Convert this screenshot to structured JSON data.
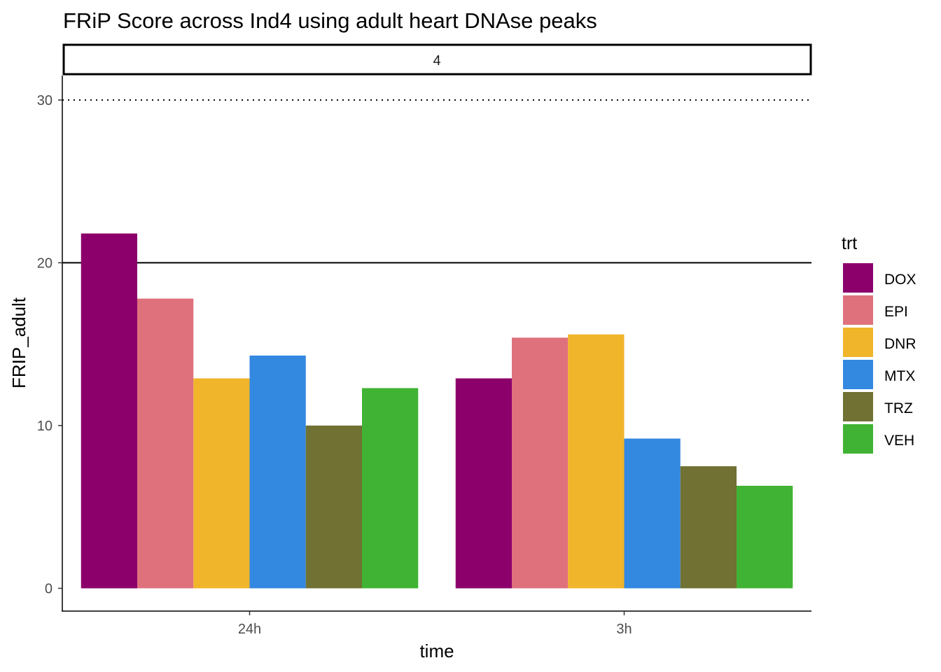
{
  "chart_data": {
    "type": "bar",
    "title": "FRiP Score  across Ind4 using adult heart DNAse peaks",
    "facet_label": "4",
    "xlabel": "time",
    "ylabel": "FRIP_adult",
    "categories": [
      "24h",
      "3h"
    ],
    "ylim": [
      -1.4,
      31.5
    ],
    "yticks": [
      0,
      10,
      20,
      30
    ],
    "reference_lines": [
      {
        "y": 20,
        "style": "solid"
      },
      {
        "y": 30,
        "style": "dotted"
      }
    ],
    "legend": {
      "title": "trt",
      "position": "right"
    },
    "series": [
      {
        "name": "DOX",
        "color": "#8B006B",
        "values": [
          21.8,
          12.9
        ]
      },
      {
        "name": "EPI",
        "color": "#DF717D",
        "values": [
          17.8,
          15.4
        ]
      },
      {
        "name": "DNR",
        "color": "#F0B52B",
        "values": [
          12.9,
          15.6
        ]
      },
      {
        "name": "MTX",
        "color": "#3388E0",
        "values": [
          14.3,
          9.2
        ]
      },
      {
        "name": "TRZ",
        "color": "#707133",
        "values": [
          10.0,
          7.5
        ]
      },
      {
        "name": "VEH",
        "color": "#41B334",
        "values": [
          12.3,
          6.3
        ]
      }
    ]
  }
}
